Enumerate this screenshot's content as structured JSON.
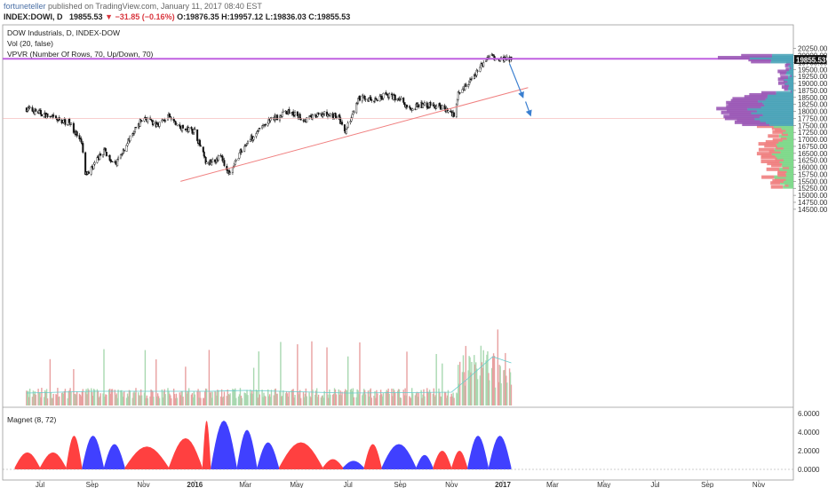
{
  "header": {
    "author": "fortuneteller",
    "published": "published on TradingView.com, January 11, 2017 08:40 EST",
    "symbol": "INDEX:DOWI, D",
    "last": "19855.53",
    "change": "−31.85 (−0.16%)",
    "o": "O:19876.35",
    "h": "H:19957.12",
    "l": "L:19836.03",
    "c": "C:19855.53"
  },
  "legend": {
    "title": "DOW Industrials, D, INDEX-DOW",
    "vol": "Vol (20, false)",
    "vpvr": "VPVR (Number Of Rows, 70, Up/Down, 70)",
    "magnet": "Magnet (8, 72)"
  },
  "colors": {
    "up": "#3c9c57",
    "down": "#d9363e",
    "trendline": "#f08080",
    "arrow": "#3a7fd0",
    "resistance": "#c060e0",
    "vpvr_up": "#4aa3b8",
    "vpvr_down": "#9b59b6",
    "vpvr_low_up": "#7dd88a",
    "vpvr_low_down": "#f08080",
    "magnet_pos": "#ff4040",
    "magnet_neg": "#4040ff"
  },
  "chart_data": [
    {
      "type": "candlestick",
      "x_ticks": [
        "Jul",
        "Sep",
        "Nov",
        "2016",
        "Mar",
        "May",
        "Jul",
        "Sep",
        "Nov",
        "2017",
        "Mar",
        "May",
        "Jul",
        "Sep",
        "Nov"
      ],
      "y_ticks": [
        20250,
        20000,
        19750,
        19500,
        19250,
        19000,
        18750,
        18500,
        18250,
        18000,
        17750,
        17500,
        17250,
        17000,
        16750,
        16500,
        16250,
        16000,
        15750,
        15500,
        15250,
        15000,
        14750,
        14500
      ],
      "last_price_label": "19855.53",
      "close_path": [
        [
          "2015-06-15",
          18100
        ],
        [
          "2015-07-01",
          17950
        ],
        [
          "2015-07-20",
          17700
        ],
        [
          "2015-08-05",
          17600
        ],
        [
          "2015-08-20",
          16800
        ],
        [
          "2015-08-24",
          15700
        ],
        [
          "2015-09-01",
          16000
        ],
        [
          "2015-09-15",
          16600
        ],
        [
          "2015-09-29",
          16100
        ],
        [
          "2015-10-15",
          17000
        ],
        [
          "2015-11-01",
          17800
        ],
        [
          "2015-11-15",
          17500
        ],
        [
          "2015-12-01",
          17800
        ],
        [
          "2015-12-15",
          17400
        ],
        [
          "2016-01-01",
          17300
        ],
        [
          "2016-01-15",
          16100
        ],
        [
          "2016-02-01",
          16400
        ],
        [
          "2016-02-11",
          15700
        ],
        [
          "2016-02-25",
          16600
        ],
        [
          "2016-03-15",
          17300
        ],
        [
          "2016-04-01",
          17700
        ],
        [
          "2016-04-20",
          18000
        ],
        [
          "2016-05-10",
          17700
        ],
        [
          "2016-06-01",
          17900
        ],
        [
          "2016-06-20",
          17800
        ],
        [
          "2016-06-27",
          17200
        ],
        [
          "2016-07-15",
          18500
        ],
        [
          "2016-08-01",
          18400
        ],
        [
          "2016-08-15",
          18600
        ],
        [
          "2016-09-01",
          18450
        ],
        [
          "2016-09-09",
          18100
        ],
        [
          "2016-10-01",
          18250
        ],
        [
          "2016-10-20",
          18150
        ],
        [
          "2016-11-04",
          17900
        ],
        [
          "2016-11-09",
          18600
        ],
        [
          "2016-11-25",
          19150
        ],
        [
          "2016-12-09",
          19750
        ],
        [
          "2016-12-20",
          19950
        ],
        [
          "2017-01-11",
          19855
        ]
      ],
      "resistance_level": 19880,
      "support_level": 17750,
      "trendline": [
        [
          "2015-12-15",
          15500
        ],
        [
          "2016-11-04",
          17900
        ],
        [
          "2017-01-31",
          18850
        ]
      ],
      "projection_arrows": [
        [
          [
            "2017-01-09",
            19700
          ],
          [
            "2017-01-25",
            18500
          ]
        ],
        [
          [
            "2017-01-28",
            18350
          ],
          [
            "2017-02-03",
            17850
          ]
        ]
      ]
    },
    {
      "type": "bar",
      "name": "Volume",
      "note": "daily volume, spike into Dec 2016"
    },
    {
      "type": "area",
      "name": "Magnet (8, 72)",
      "y_ticks": [
        6.0,
        4.0,
        2.0,
        0.0
      ],
      "y_tick_labels": [
        "6.0000",
        "4.0000",
        "2.0000",
        "0.0000"
      ],
      "values": [
        [
          "2015-06-01",
          0.3,
          "pos"
        ],
        [
          "2015-07-01",
          1.8,
          "pos"
        ],
        [
          "2015-08-01",
          1.5,
          "pos"
        ],
        [
          "2015-08-20",
          3.8,
          "neg"
        ],
        [
          "2015-09-15",
          2.8,
          "neg"
        ],
        [
          "2015-10-10",
          2.0,
          "pos"
        ],
        [
          "2015-12-01",
          2.5,
          "pos"
        ],
        [
          "2016-01-10",
          3.5,
          "pos"
        ],
        [
          "2016-01-20",
          5.6,
          "neg"
        ],
        [
          "2016-02-20",
          4.5,
          "neg"
        ],
        [
          "2016-03-15",
          0.5,
          "neg"
        ],
        [
          "2016-04-10",
          3.0,
          "pos"
        ],
        [
          "2016-06-01",
          1.0,
          "pos"
        ],
        [
          "2016-06-25",
          0.8,
          "neg"
        ],
        [
          "2016-07-20",
          0.5,
          "pos"
        ],
        [
          "2016-08-10",
          2.8,
          "neg"
        ],
        [
          "2016-09-20",
          1.5,
          "neg"
        ],
        [
          "2016-10-10",
          1.0,
          "pos"
        ],
        [
          "2016-11-01",
          2.0,
          "pos"
        ],
        [
          "2016-11-20",
          2.0,
          "neg"
        ],
        [
          "2016-12-15",
          3.8,
          "neg"
        ],
        [
          "2017-01-11",
          3.5,
          "neg"
        ]
      ]
    }
  ]
}
